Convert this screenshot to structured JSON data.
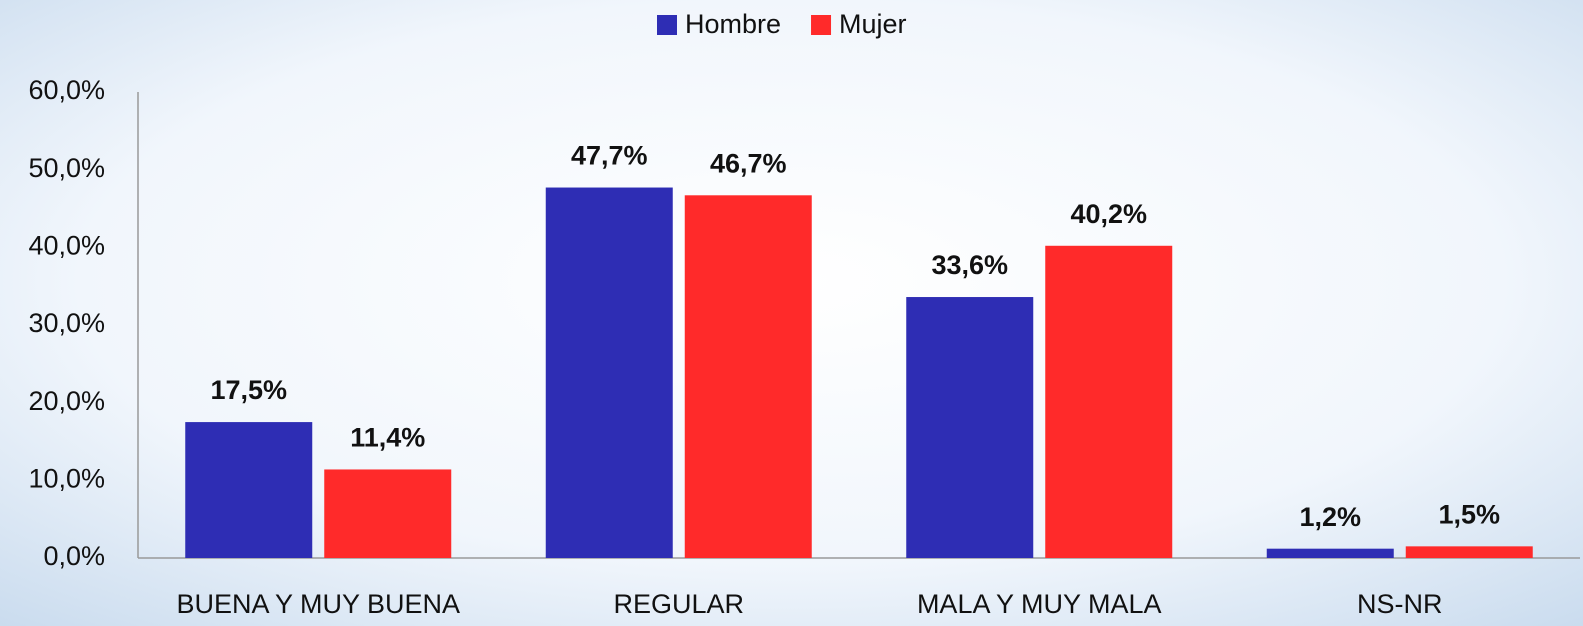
{
  "chart_data": {
    "type": "bar",
    "categories": [
      "BUENA Y MUY BUENA",
      "REGULAR",
      "MALA Y MUY MALA",
      "NS-NR"
    ],
    "series": [
      {
        "name": "Hombre",
        "color": "#2e2db4",
        "values": [
          17.5,
          47.7,
          33.6,
          1.2
        ],
        "value_labels": [
          "17,5%",
          "47,7%",
          "33,6%",
          "1,2%"
        ]
      },
      {
        "name": "Mujer",
        "color": "#ff2a2a",
        "values": [
          11.4,
          46.7,
          40.2,
          1.5
        ],
        "value_labels": [
          "11,4%",
          "46,7%",
          "40,2%",
          "1,5%"
        ]
      }
    ],
    "ylim": [
      0,
      60
    ],
    "yticks": [
      {
        "value": 0,
        "label": "0,0%"
      },
      {
        "value": 10,
        "label": "10,0%"
      },
      {
        "value": 20,
        "label": "20,0%"
      },
      {
        "value": 30,
        "label": "30,0%"
      },
      {
        "value": 40,
        "label": "40,0%"
      },
      {
        "value": 50,
        "label": "50,0%"
      },
      {
        "value": 60,
        "label": "60,0%"
      }
    ],
    "grid": false,
    "legend": "top"
  }
}
